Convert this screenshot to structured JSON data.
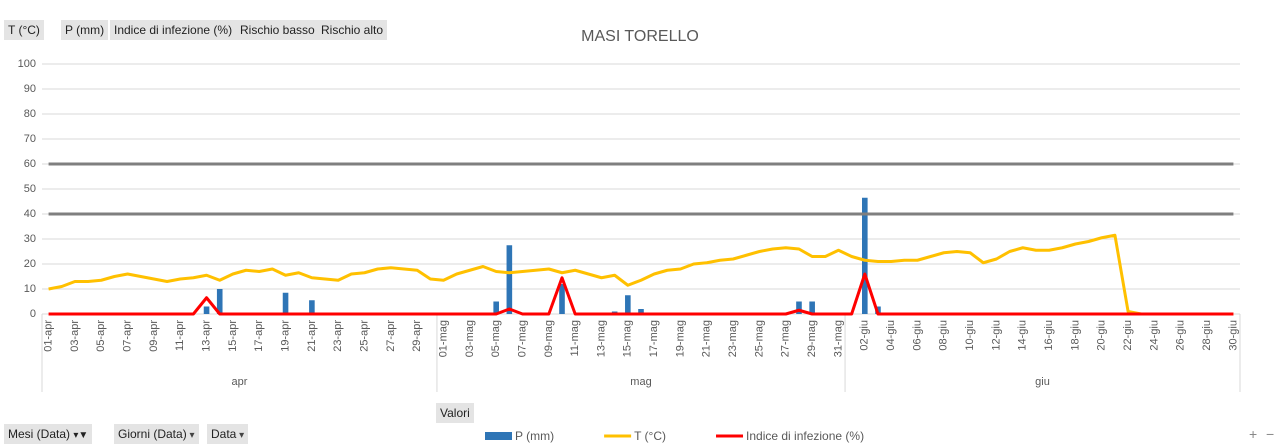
{
  "chart_data": {
    "type": "combo",
    "title": "MASI TORELLO",
    "months": [
      {
        "name": "apr",
        "days": [
          "01-apr",
          null,
          "03-apr",
          null,
          "05-apr",
          null,
          "07-apr",
          null,
          "09-apr",
          null,
          "11-apr",
          null,
          "13-apr",
          null,
          "15-apr",
          null,
          "17-apr",
          null,
          "19-apr",
          null,
          "21-apr",
          null,
          "23-apr",
          null,
          "25-apr",
          null,
          "27-apr",
          null,
          "29-apr",
          null
        ]
      },
      {
        "name": "mag",
        "days": [
          "01-mag",
          null,
          "03-mag",
          null,
          "05-mag",
          null,
          "07-mag",
          null,
          "09-mag",
          null,
          "11-mag",
          null,
          "13-mag",
          null,
          "15-mag",
          null,
          "17-mag",
          null,
          "19-mag",
          null,
          "21-mag",
          null,
          "23-mag",
          null,
          "25-mag",
          null,
          "27-mag",
          null,
          "29-mag",
          null,
          "31-mag"
        ]
      },
      {
        "name": "giu",
        "days": [
          null,
          "02-giu",
          null,
          "04-giu",
          null,
          "06-giu",
          null,
          "08-giu",
          null,
          "10-giu",
          null,
          "12-giu",
          null,
          "14-giu",
          null,
          "16-giu",
          null,
          "18-giu",
          null,
          "20-giu",
          null,
          "22-giu",
          null,
          "24-giu",
          null,
          "26-giu",
          null,
          "28-giu",
          null,
          "30-giu"
        ]
      }
    ],
    "series": [
      {
        "name": "P (mm)",
        "kind": "bar",
        "color": "#2e75b6",
        "legend": true,
        "values": [
          0,
          0,
          0,
          0,
          0,
          0,
          0,
          0,
          0,
          0,
          0,
          0,
          3,
          10,
          0,
          0,
          0,
          0,
          8.5,
          0,
          5.5,
          0,
          0,
          0,
          0,
          0,
          0,
          0,
          0,
          0,
          0,
          0,
          0,
          0,
          5,
          27.5,
          0,
          0,
          0,
          12,
          0,
          0,
          0,
          1,
          7.5,
          2,
          0,
          0,
          0,
          0,
          0,
          0,
          0,
          0,
          0,
          0,
          0,
          5,
          5,
          0,
          0,
          0,
          46.5,
          3,
          0,
          0,
          0,
          0,
          0,
          0,
          0,
          0,
          0,
          0,
          0,
          0,
          0,
          0,
          0,
          0,
          0,
          0,
          0,
          0,
          0,
          0,
          0,
          0,
          0,
          0,
          0
        ]
      },
      {
        "name": "T (°C)",
        "kind": "line",
        "color": "#ffc000",
        "legend": true,
        "values": [
          10,
          11,
          13,
          13,
          13.5,
          15,
          16,
          15,
          14,
          13,
          14,
          14.5,
          15.5,
          13.5,
          16,
          17.5,
          17,
          18,
          15.5,
          16.5,
          14.5,
          14,
          13.5,
          16,
          16.5,
          18,
          18.5,
          18,
          17.5,
          14,
          13.5,
          16,
          17.5,
          19,
          17,
          16.5,
          17,
          17.5,
          18,
          16.5,
          17.5,
          16,
          14.5,
          15.5,
          11.5,
          13.5,
          16,
          17.5,
          18,
          20,
          20.5,
          21.5,
          22,
          23.5,
          25,
          26,
          26.5,
          26,
          23,
          23,
          25.5,
          23,
          21.5,
          21,
          21,
          21.5,
          21.5,
          23,
          24.5,
          25,
          24.5,
          20.5,
          22,
          25,
          26.5,
          25.5,
          25.5,
          26.5,
          28,
          29,
          30.5,
          31.5,
          1,
          0,
          0,
          0,
          0,
          0,
          0,
          0,
          0
        ]
      },
      {
        "name": "Indice di infezione (%)",
        "kind": "line",
        "color": "#ff0000",
        "legend": true,
        "values": [
          0,
          0,
          0,
          0,
          0,
          0,
          0,
          0,
          0,
          0,
          0,
          0,
          6.5,
          0,
          0,
          0,
          0,
          0,
          0,
          0,
          0,
          0,
          0,
          0,
          0,
          0,
          0,
          0,
          0,
          0,
          0,
          0,
          0,
          0,
          0,
          2,
          0,
          0,
          0,
          14.5,
          0,
          0,
          0,
          0,
          0,
          0,
          0,
          0,
          0,
          0,
          0,
          0,
          0,
          0,
          0,
          0,
          0,
          1.5,
          0,
          0,
          0,
          0,
          16,
          0,
          0,
          0,
          0,
          0,
          0,
          0,
          0,
          0,
          0,
          0,
          0,
          0,
          0,
          0,
          0,
          0,
          0,
          0,
          0,
          0,
          0,
          0,
          0,
          0,
          0,
          0,
          0
        ]
      },
      {
        "name": "Rischio basso",
        "kind": "line",
        "color": "#7f7f7f",
        "legend": false,
        "values": [
          40,
          40,
          40,
          40,
          40,
          40,
          40,
          40,
          40,
          40,
          40,
          40,
          40,
          40,
          40,
          40,
          40,
          40,
          40,
          40,
          40,
          40,
          40,
          40,
          40,
          40,
          40,
          40,
          40,
          40,
          40,
          40,
          40,
          40,
          40,
          40,
          40,
          40,
          40,
          40,
          40,
          40,
          40,
          40,
          40,
          40,
          40,
          40,
          40,
          40,
          40,
          40,
          40,
          40,
          40,
          40,
          40,
          40,
          40,
          40,
          40,
          40,
          40,
          40,
          40,
          40,
          40,
          40,
          40,
          40,
          40,
          40,
          40,
          40,
          40,
          40,
          40,
          40,
          40,
          40,
          40,
          40,
          40,
          40,
          40,
          40,
          40,
          40,
          40,
          40,
          40
        ]
      },
      {
        "name": "Rischio alto",
        "kind": "line",
        "color": "#7f7f7f",
        "legend": false,
        "values": [
          60,
          60,
          60,
          60,
          60,
          60,
          60,
          60,
          60,
          60,
          60,
          60,
          60,
          60,
          60,
          60,
          60,
          60,
          60,
          60,
          60,
          60,
          60,
          60,
          60,
          60,
          60,
          60,
          60,
          60,
          60,
          60,
          60,
          60,
          60,
          60,
          60,
          60,
          60,
          60,
          60,
          60,
          60,
          60,
          60,
          60,
          60,
          60,
          60,
          60,
          60,
          60,
          60,
          60,
          60,
          60,
          60,
          60,
          60,
          60,
          60,
          60,
          60,
          60,
          60,
          60,
          60,
          60,
          60,
          60,
          60,
          60,
          60,
          60,
          60,
          60,
          60,
          60,
          60,
          60,
          60,
          60,
          60,
          60,
          60,
          60,
          60,
          60,
          60,
          60,
          60
        ]
      }
    ],
    "ylim": [
      0,
      100
    ],
    "yticks": [
      0,
      10,
      20,
      30,
      40,
      50,
      60,
      70,
      80,
      90,
      100
    ],
    "grid": true
  },
  "ui": {
    "values_button": "Valori",
    "row_fields": [
      "Mesi (Data)",
      "Giorni (Data)",
      "Data"
    ],
    "zoom_in": "+",
    "zoom_out": "−"
  }
}
